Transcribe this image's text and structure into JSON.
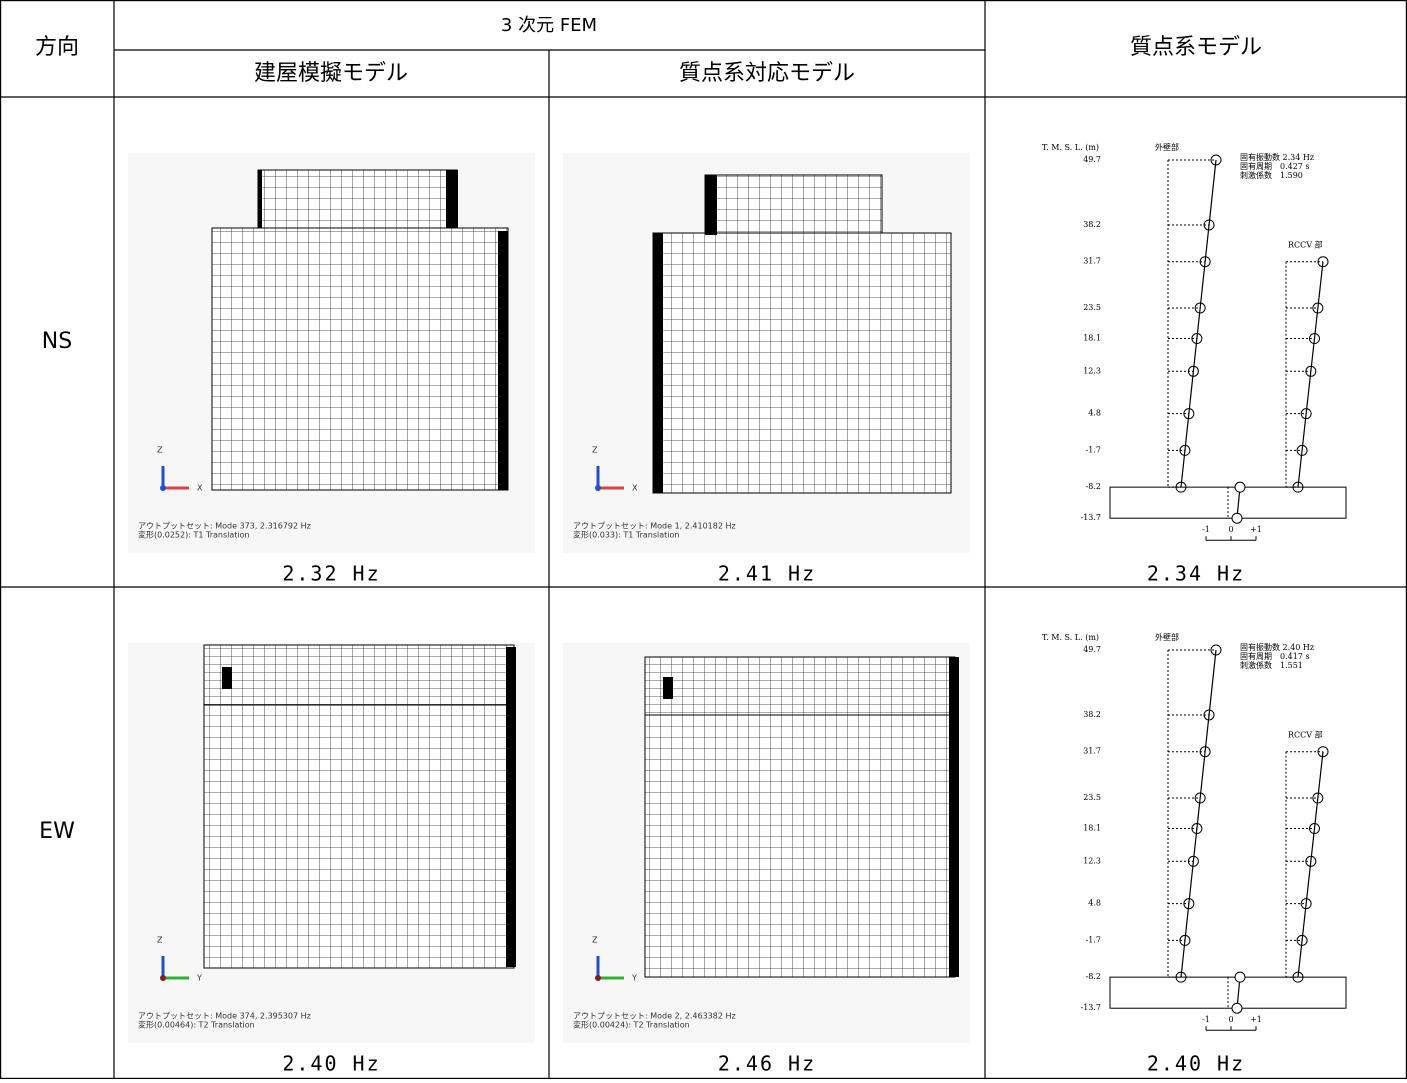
{
  "table": {
    "header": {
      "direction": "方向",
      "fem": "3 次元 FEM",
      "fem_building": "建屋模擬モデル",
      "fem_mass": "質点系対応モデル",
      "mass_model": "質点系モデル"
    },
    "rows": [
      {
        "direction": "NS",
        "fem_building": {
          "axis": [
            "Z",
            "X"
          ],
          "caption": [
            "アウトプットセット: Mode 373, 2.316792 Hz",
            "変形(0.0252): T1 Translation"
          ],
          "freq": "2.32 Hz"
        },
        "fem_mass": {
          "axis": [
            "Z",
            "X"
          ],
          "caption": [
            "アウトプットセット: Mode 1, 2.410182 Hz",
            "変形(0.033): T1 Translation"
          ],
          "freq": "2.41 Hz"
        },
        "mass_model": {
          "unit": "T. M. S. L. (m)",
          "outer": "外壁部",
          "rccv": "RCCV 部",
          "info": [
            "固有振動数 2.34 Hz",
            "固有周期　0.427 s",
            "刺激係数　1.590"
          ],
          "levels": [
            49.7,
            38.2,
            31.7,
            23.5,
            18.1,
            12.3,
            4.8,
            -1.7,
            -8.2,
            -13.7
          ],
          "scale": [
            "-1",
            "0",
            "+1"
          ],
          "freq": "2.34 Hz"
        }
      },
      {
        "direction": "EW",
        "fem_building": {
          "axis": [
            "Z",
            "Y"
          ],
          "caption": [
            "アウトプットセット: Mode 374, 2.395307 Hz",
            "変形(0.00464): T2 Translation"
          ],
          "freq": "2.40 Hz"
        },
        "fem_mass": {
          "axis": [
            "Z",
            "Y"
          ],
          "caption": [
            "アウトプットセット: Mode 2, 2.463382 Hz",
            "変形(0.00424): T2 Translation"
          ],
          "freq": "2.46 Hz"
        },
        "mass_model": {
          "unit": "T. M. S. L. (m)",
          "outer": "外壁部",
          "rccv": "RCCV 部",
          "info": [
            "固有振動数 2.40 Hz",
            "固有周期　0.417 s",
            "刺激係数　1.551"
          ],
          "levels": [
            49.7,
            38.2,
            31.7,
            23.5,
            18.1,
            12.3,
            4.8,
            -1.7,
            -8.2,
            -13.7
          ],
          "scale": [
            "-1",
            "0",
            "+1"
          ],
          "freq": "2.40 Hz"
        }
      }
    ]
  }
}
